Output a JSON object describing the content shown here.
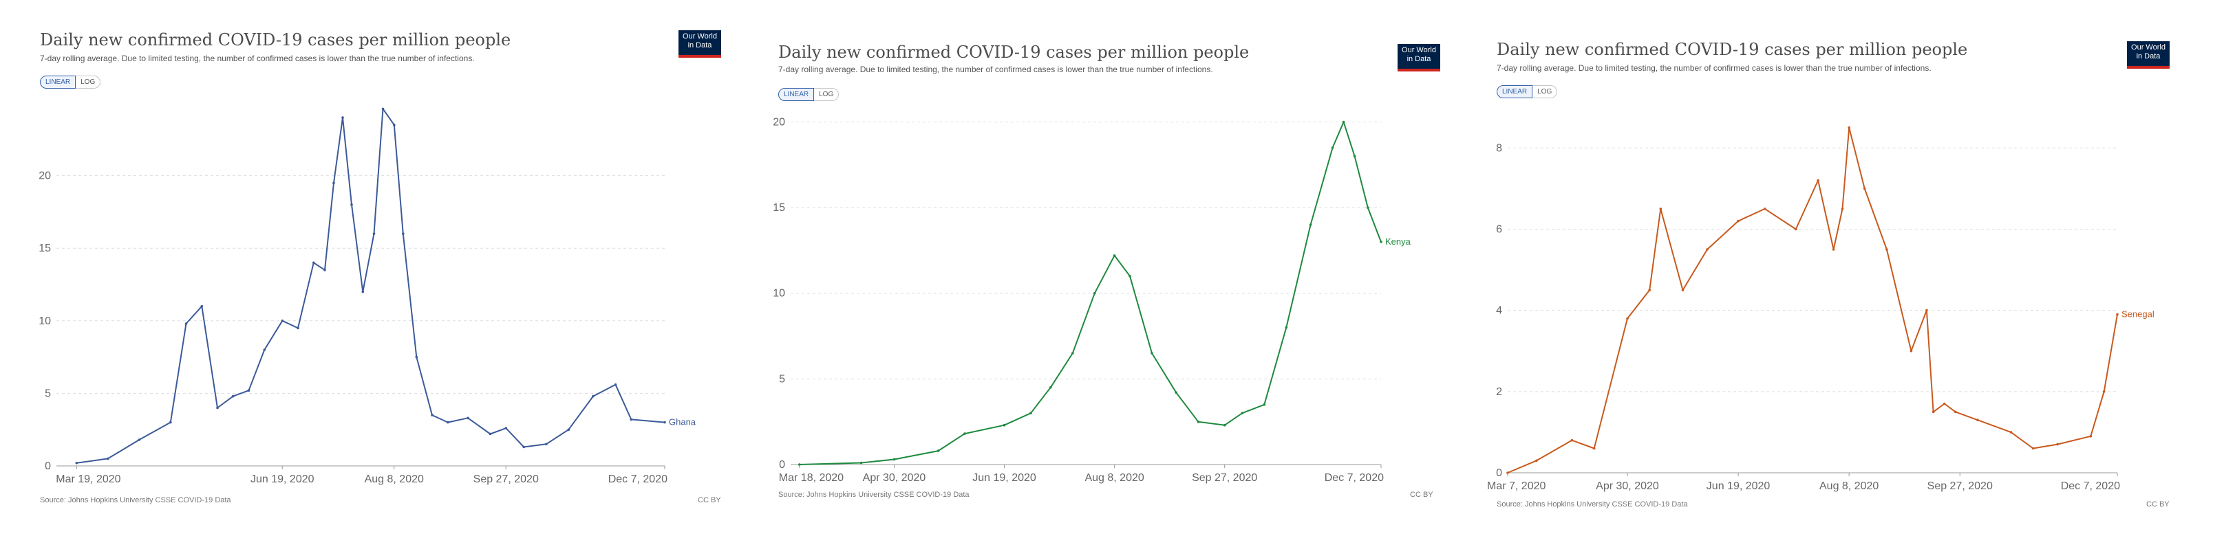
{
  "chart_data": [
    {
      "type": "line",
      "title": "Daily new confirmed COVID-19 cases per million people",
      "subtitle": "7-day rolling average. Due to limited testing, the number of confirmed cases is lower than the true number of infections.",
      "toggle": {
        "linear": "LINEAR",
        "log": "LOG"
      },
      "logo": {
        "line1": "Our World",
        "line2": "in Data"
      },
      "source": "Source: Johns Hopkins University CSSE COVID-19 Data",
      "license": "CC BY",
      "color": "#3c5a9a",
      "series": [
        {
          "name": "Ghana",
          "x": [
            "2020-03-19",
            "2020-04-02",
            "2020-04-16",
            "2020-04-30",
            "2020-05-07",
            "2020-05-14",
            "2020-05-21",
            "2020-05-28",
            "2020-06-04",
            "2020-06-11",
            "2020-06-19",
            "2020-06-26",
            "2020-07-03",
            "2020-07-08",
            "2020-07-12",
            "2020-07-16",
            "2020-07-20",
            "2020-07-25",
            "2020-07-30",
            "2020-08-03",
            "2020-08-08",
            "2020-08-12",
            "2020-08-18",
            "2020-08-25",
            "2020-09-01",
            "2020-09-10",
            "2020-09-20",
            "2020-09-27",
            "2020-10-05",
            "2020-10-15",
            "2020-10-25",
            "2020-11-05",
            "2020-11-15",
            "2020-11-22",
            "2020-12-07"
          ],
          "values": [
            0.2,
            0.5,
            1.8,
            3.0,
            9.8,
            11.0,
            4.0,
            4.8,
            5.2,
            8.0,
            10.0,
            9.5,
            14.0,
            13.5,
            19.5,
            24.0,
            18.0,
            12.0,
            16.0,
            24.6,
            23.5,
            16.0,
            7.5,
            3.5,
            3.0,
            3.3,
            2.2,
            2.6,
            1.3,
            1.5,
            2.5,
            4.8,
            5.6,
            3.2,
            3.0
          ]
        }
      ],
      "xticks": [
        "Mar 19, 2020",
        "Jun 19, 2020",
        "Aug 8, 2020",
        "Sep 27, 2020",
        "Dec 7, 2020"
      ],
      "xtick_dates": [
        "2020-03-19",
        "2020-06-19",
        "2020-08-08",
        "2020-09-27",
        "2020-12-07"
      ],
      "x_range": [
        "2020-03-10",
        "2020-12-07"
      ],
      "yticks": [
        0,
        5,
        10,
        15,
        20
      ],
      "ylim": [
        0,
        25
      ],
      "grid": true
    },
    {
      "type": "line",
      "title": "Daily new confirmed COVID-19 cases per million people",
      "subtitle": "7-day rolling average. Due to limited testing, the number of confirmed cases is lower than the true number of infections.",
      "toggle": {
        "linear": "LINEAR",
        "log": "LOG"
      },
      "logo": {
        "line1": "Our World",
        "line2": "in Data"
      },
      "source": "Source: Johns Hopkins University CSSE COVID-19 Data",
      "license": "CC BY",
      "color": "#1f8a3f",
      "series": [
        {
          "name": "Kenya",
          "x": [
            "2020-03-18",
            "2020-04-15",
            "2020-04-30",
            "2020-05-20",
            "2020-06-01",
            "2020-06-19",
            "2020-07-01",
            "2020-07-10",
            "2020-07-20",
            "2020-07-30",
            "2020-08-08",
            "2020-08-15",
            "2020-08-25",
            "2020-09-05",
            "2020-09-15",
            "2020-09-27",
            "2020-10-05",
            "2020-10-15",
            "2020-10-25",
            "2020-11-05",
            "2020-11-15",
            "2020-11-20",
            "2020-11-25",
            "2020-12-01",
            "2020-12-07"
          ],
          "values": [
            0.0,
            0.1,
            0.3,
            0.8,
            1.8,
            2.3,
            3.0,
            4.5,
            6.5,
            10.0,
            12.2,
            11.0,
            6.5,
            4.2,
            2.5,
            2.3,
            3.0,
            3.5,
            8.0,
            14.0,
            18.5,
            20.0,
            18.0,
            15.0,
            13.0
          ]
        }
      ],
      "xticks": [
        "Mar 18, 2020",
        "Apr 30, 2020",
        "Jun 19, 2020",
        "Aug 8, 2020",
        "Sep 27, 2020",
        "Dec 7, 2020"
      ],
      "xtick_dates": [
        "2020-03-18",
        "2020-04-30",
        "2020-06-19",
        "2020-08-08",
        "2020-09-27",
        "2020-12-07"
      ],
      "x_range": [
        "2020-03-14",
        "2020-12-07"
      ],
      "yticks": [
        0,
        5,
        10,
        15,
        20
      ],
      "ylim": [
        0,
        20.3
      ],
      "grid": true
    },
    {
      "type": "line",
      "title": "Daily new confirmed COVID-19 cases per million people",
      "subtitle": "7-day rolling average. Due to limited testing, the number of confirmed cases is lower than the true number of infections.",
      "toggle": {
        "linear": "LINEAR",
        "log": "LOG"
      },
      "logo": {
        "line1": "Our World",
        "line2": "in Data"
      },
      "source": "Source: Johns Hopkins University CSSE COVID-19 Data",
      "license": "CC BY",
      "color": "#c85a1e",
      "series": [
        {
          "name": "Senegal",
          "x": [
            "2020-03-07",
            "2020-03-20",
            "2020-04-05",
            "2020-04-15",
            "2020-04-30",
            "2020-05-10",
            "2020-05-15",
            "2020-05-25",
            "2020-06-05",
            "2020-06-19",
            "2020-07-01",
            "2020-07-15",
            "2020-07-25",
            "2020-08-01",
            "2020-08-05",
            "2020-08-08",
            "2020-08-15",
            "2020-08-25",
            "2020-09-05",
            "2020-09-12",
            "2020-09-15",
            "2020-09-20",
            "2020-09-25",
            "2020-10-05",
            "2020-10-20",
            "2020-10-30",
            "2020-11-10",
            "2020-11-25",
            "2020-12-01",
            "2020-12-07"
          ],
          "values": [
            0.0,
            0.3,
            0.8,
            0.6,
            3.8,
            4.5,
            6.5,
            4.5,
            5.5,
            6.2,
            6.5,
            6.0,
            7.2,
            5.5,
            6.5,
            8.5,
            7.0,
            5.5,
            3.0,
            4.0,
            1.5,
            1.7,
            1.5,
            1.3,
            1.0,
            0.6,
            0.7,
            0.9,
            2.0,
            3.9
          ]
        }
      ],
      "xticks": [
        "Mar 7, 2020",
        "Apr 30, 2020",
        "Jun 19, 2020",
        "Aug 8, 2020",
        "Sep 27, 2020",
        "Dec 7, 2020"
      ],
      "xtick_dates": [
        "2020-03-07",
        "2020-04-30",
        "2020-06-19",
        "2020-08-08",
        "2020-09-27",
        "2020-12-07"
      ],
      "x_range": [
        "2020-03-07",
        "2020-12-07"
      ],
      "yticks": [
        0,
        2,
        4,
        6,
        8
      ],
      "ylim": [
        0,
        8.8
      ],
      "grid": true
    }
  ]
}
